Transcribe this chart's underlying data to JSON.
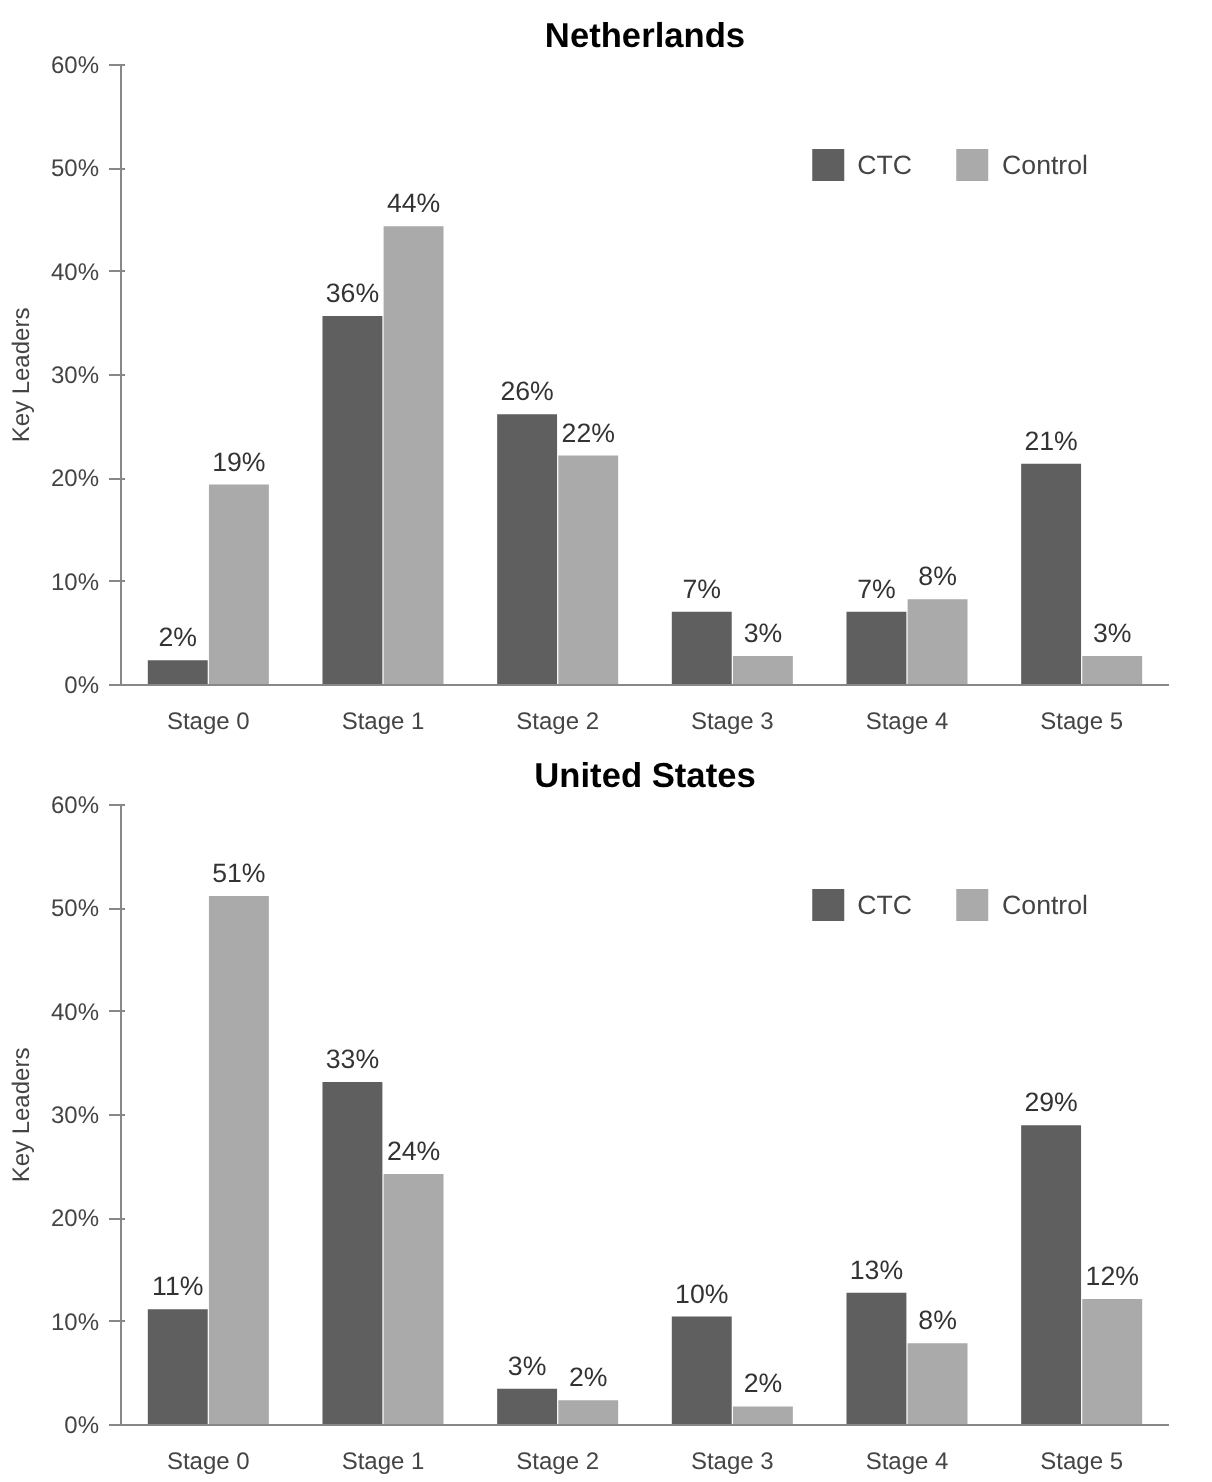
{
  "chart_data": [
    {
      "type": "bar",
      "title": "Netherlands",
      "ylabel": "Key Leaders",
      "categories": [
        "Stage 0",
        "Stage 1",
        "Stage 2",
        "Stage 3",
        "Stage 4",
        "Stage 5"
      ],
      "series": [
        {
          "name": "CTC",
          "color": "#5f5f5f",
          "values": [
            2.4,
            35.7,
            26.2,
            7.1,
            7.1,
            21.4
          ],
          "value_labels": [
            "2%",
            "36%",
            "26%",
            "7%",
            "7%",
            "21%"
          ]
        },
        {
          "name": "Control",
          "color": "#aaaaaa",
          "values": [
            19.4,
            44.4,
            22.2,
            2.8,
            8.3,
            2.8
          ],
          "value_labels": [
            "19%",
            "44%",
            "22%",
            "3%",
            "8%",
            "3%"
          ]
        }
      ],
      "ylim": [
        0,
        60
      ],
      "yticks": [
        {
          "value": 0,
          "label": "0%"
        },
        {
          "value": 10,
          "label": "10%"
        },
        {
          "value": 20,
          "label": "20%"
        },
        {
          "value": 30,
          "label": "30%"
        },
        {
          "value": 40,
          "label": "40%"
        },
        {
          "value": 50,
          "label": "50%"
        },
        {
          "value": 60,
          "label": "60%"
        }
      ],
      "legend": "top right",
      "grid": false
    },
    {
      "type": "bar",
      "title": "United States",
      "ylabel": "Key Leaders",
      "categories": [
        "Stage 0",
        "Stage 1",
        "Stage 2",
        "Stage 3",
        "Stage 4",
        "Stage 5"
      ],
      "series": [
        {
          "name": "CTC",
          "color": "#5f5f5f",
          "values": [
            11.2,
            33.2,
            3.5,
            10.5,
            12.8,
            29.0
          ],
          "value_labels": [
            "11%",
            "33%",
            "3%",
            "10%",
            "13%",
            "29%"
          ]
        },
        {
          "name": "Control",
          "color": "#aaaaaa",
          "values": [
            51.2,
            24.3,
            2.4,
            1.8,
            7.9,
            12.2
          ],
          "value_labels": [
            "51%",
            "24%",
            "2%",
            "2%",
            "8%",
            "12%"
          ]
        }
      ],
      "ylim": [
        0,
        60
      ],
      "yticks": [
        {
          "value": 0,
          "label": "0%"
        },
        {
          "value": 10,
          "label": "10%"
        },
        {
          "value": 20,
          "label": "20%"
        },
        {
          "value": 30,
          "label": "30%"
        },
        {
          "value": 40,
          "label": "40%"
        },
        {
          "value": 50,
          "label": "50%"
        },
        {
          "value": 60,
          "label": "60%"
        }
      ],
      "legend": "top right",
      "grid": false
    }
  ]
}
